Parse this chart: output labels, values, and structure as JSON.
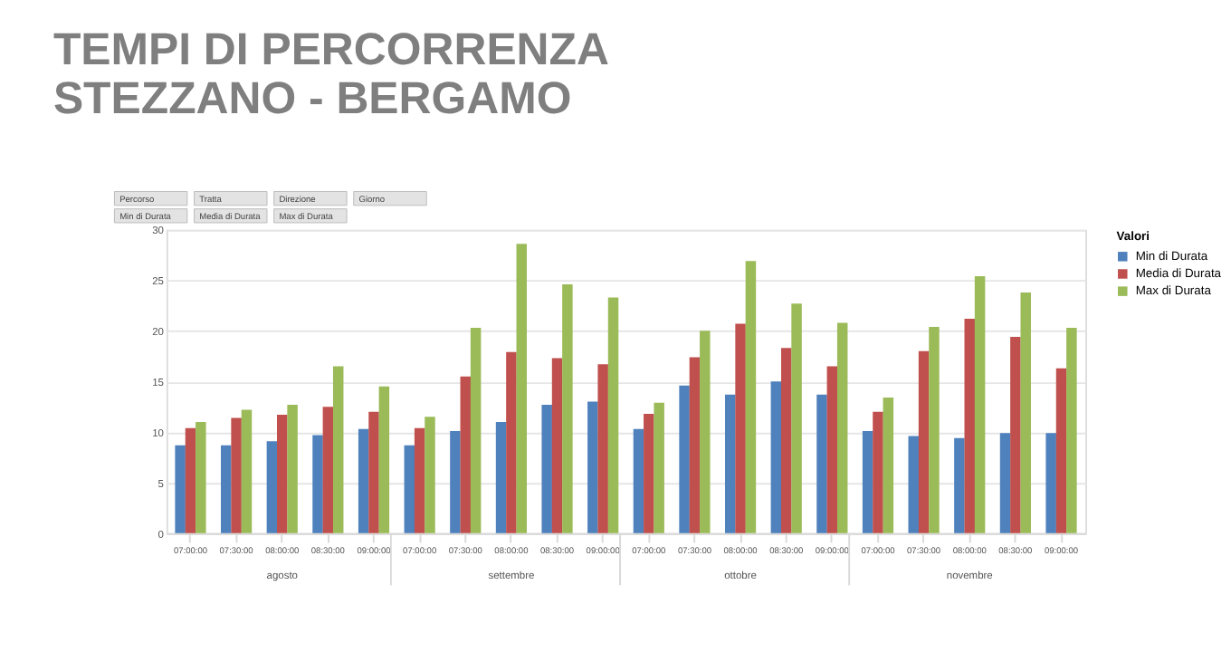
{
  "chart_data": {
    "type": "bar",
    "title": [
      "TEMPI DI PERCORRENZA",
      "STEZZANO - BERGAMO"
    ],
    "categories": [
      "07:00:00",
      "07:30:00",
      "08:00:00",
      "08:30:00",
      "09:00:00",
      "07:00:00",
      "07:30:00",
      "08:00:00",
      "08:30:00",
      "09:00:00",
      "07:00:00",
      "07:30:00",
      "08:00:00",
      "08:30:00",
      "09:00:00",
      "07:00:00",
      "07:30:00",
      "08:00:00",
      "08:30:00",
      "09:00:00"
    ],
    "series": [
      {
        "name": "Min di Durata",
        "color": "#4f81bd",
        "values": [
          8.7,
          8.7,
          9.1,
          9.7,
          10.3,
          8.7,
          10.1,
          11.0,
          12.7,
          13.0,
          10.3,
          14.6,
          13.7,
          15.0,
          13.7,
          10.1,
          9.6,
          9.4,
          9.9,
          9.9
        ]
      },
      {
        "name": "Media di Durata",
        "color": "#c0504d",
        "values": [
          10.4,
          11.4,
          11.7,
          12.5,
          12.0,
          10.4,
          15.5,
          17.9,
          17.3,
          16.7,
          11.8,
          17.4,
          20.7,
          18.3,
          16.5,
          12.0,
          18.0,
          21.2,
          19.4,
          16.3
        ]
      },
      {
        "name": "Max di Durata",
        "color": "#9bbb59",
        "values": [
          11.0,
          12.2,
          12.7,
          16.5,
          14.5,
          11.5,
          20.3,
          28.6,
          24.6,
          23.3,
          12.9,
          20.0,
          26.9,
          22.7,
          20.8,
          13.4,
          20.4,
          25.4,
          23.8,
          20.3
        ]
      }
    ],
    "legend_title": "Valori",
    "ylim": [
      0,
      30
    ],
    "yticks": [
      0,
      5,
      10,
      15,
      20,
      25,
      30
    ],
    "grid": "y",
    "legend": "right",
    "annotations": [
      "Percorso",
      "Tratta",
      "Direzione",
      "Giorno",
      "Min di Durata",
      "Media di Durata",
      "Max di Durata",
      "agosto",
      "settembre",
      "ottobre",
      "novembre"
    ]
  }
}
